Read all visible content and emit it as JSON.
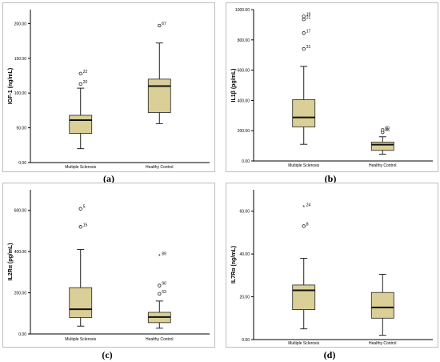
{
  "colors": {
    "box_fill": "#d9cf97",
    "box_stroke": "#222222",
    "median": "#111111",
    "whisker": "#222222"
  },
  "chart_data": [
    {
      "type": "boxplot",
      "label": "(a)",
      "ylabel": "IGF-1 (ng/mL)",
      "ylim": [
        0,
        220
      ],
      "yticks": [
        0,
        50,
        100,
        150,
        200
      ],
      "tick_labels": [
        "0.00",
        "50.00",
        "100.00",
        "150.00",
        "200.00"
      ],
      "categories": [
        "Multiple Sclerosis",
        "Healthy Control"
      ],
      "boxes": [
        {
          "min": 20,
          "q1": 42,
          "median": 61,
          "q3": 68,
          "max": 107,
          "outliers": [
            {
              "value": 113,
              "label": "20",
              "marker": "circle"
            },
            {
              "value": 128,
              "label": "22",
              "marker": "circle"
            }
          ]
        },
        {
          "min": 56,
          "q1": 72,
          "median": 110,
          "q3": 120,
          "max": 172,
          "outliers": [
            {
              "value": 197,
              "label": "67",
              "marker": "circle"
            }
          ]
        }
      ]
    },
    {
      "type": "boxplot",
      "label": "(b)",
      "ylabel": "IL1β (pg/mL)",
      "ylim": [
        0,
        1000
      ],
      "yticks": [
        0,
        200,
        400,
        600,
        800,
        1000
      ],
      "tick_labels": [
        "0.00",
        "200.00",
        "400.00",
        "600.00",
        "800.00",
        "1000.00"
      ],
      "categories": [
        "Multiple Sclerosis",
        "Healthy Control"
      ],
      "boxes": [
        {
          "min": 110,
          "q1": 225,
          "median": 288,
          "q3": 405,
          "max": 625,
          "outliers": [
            {
              "value": 740,
              "label": "31",
              "marker": "circle"
            },
            {
              "value": 845,
              "label": "17",
              "marker": "circle"
            },
            {
              "value": 935,
              "label": "21",
              "marker": "circle"
            },
            {
              "value": 955,
              "label": "19",
              "marker": "circle"
            }
          ]
        },
        {
          "min": 45,
          "q1": 70,
          "median": 108,
          "q3": 125,
          "max": 160,
          "outliers": [
            {
              "value": 190,
              "label": "46",
              "marker": "circle"
            },
            {
              "value": 205,
              "label": "80",
              "marker": "circle"
            }
          ]
        }
      ]
    },
    {
      "type": "boxplot",
      "label": "(c)",
      "ylabel": "IL2Rα (pg/mL)",
      "ylim": [
        0,
        700
      ],
      "yticks": [
        0,
        200,
        400,
        600
      ],
      "tick_labels": [
        "0.00",
        "200.00",
        "400.00",
        "600.00"
      ],
      "categories": [
        "Multiple Sclerosis",
        "Healthy Control"
      ],
      "boxes": [
        {
          "min": 38,
          "q1": 80,
          "median": 120,
          "q3": 225,
          "max": 410,
          "outliers": [
            {
              "value": 520,
              "label": "15",
              "marker": "circle"
            },
            {
              "value": 608,
              "label": "5",
              "marker": "circle"
            }
          ]
        },
        {
          "min": 28,
          "q1": 55,
          "median": 82,
          "q3": 105,
          "max": 160,
          "outliers": [
            {
              "value": 195,
              "label": "63",
              "marker": "circle"
            },
            {
              "value": 235,
              "label": "90",
              "marker": "circle"
            },
            {
              "value": 380,
              "label": "89",
              "marker": "star"
            }
          ]
        }
      ]
    },
    {
      "type": "boxplot",
      "label": "(d)",
      "ylabel": "IL7Rα (ng/mL)",
      "ylim": [
        0,
        70
      ],
      "yticks": [
        0,
        20,
        40,
        60
      ],
      "tick_labels": [
        "0.00",
        "20.00",
        "40.00",
        "60.00"
      ],
      "categories": [
        "Multiple Sclerosis",
        "Healthy Control"
      ],
      "boxes": [
        {
          "min": 5,
          "q1": 14,
          "median": 23,
          "q3": 25.5,
          "max": 38,
          "outliers": [
            {
              "value": 53,
              "label": "8",
              "marker": "circle"
            },
            {
              "value": 62,
              "label": "24",
              "marker": "star"
            }
          ]
        },
        {
          "min": 2,
          "q1": 10,
          "median": 15,
          "q3": 22,
          "max": 30.5,
          "outliers": []
        }
      ]
    }
  ]
}
